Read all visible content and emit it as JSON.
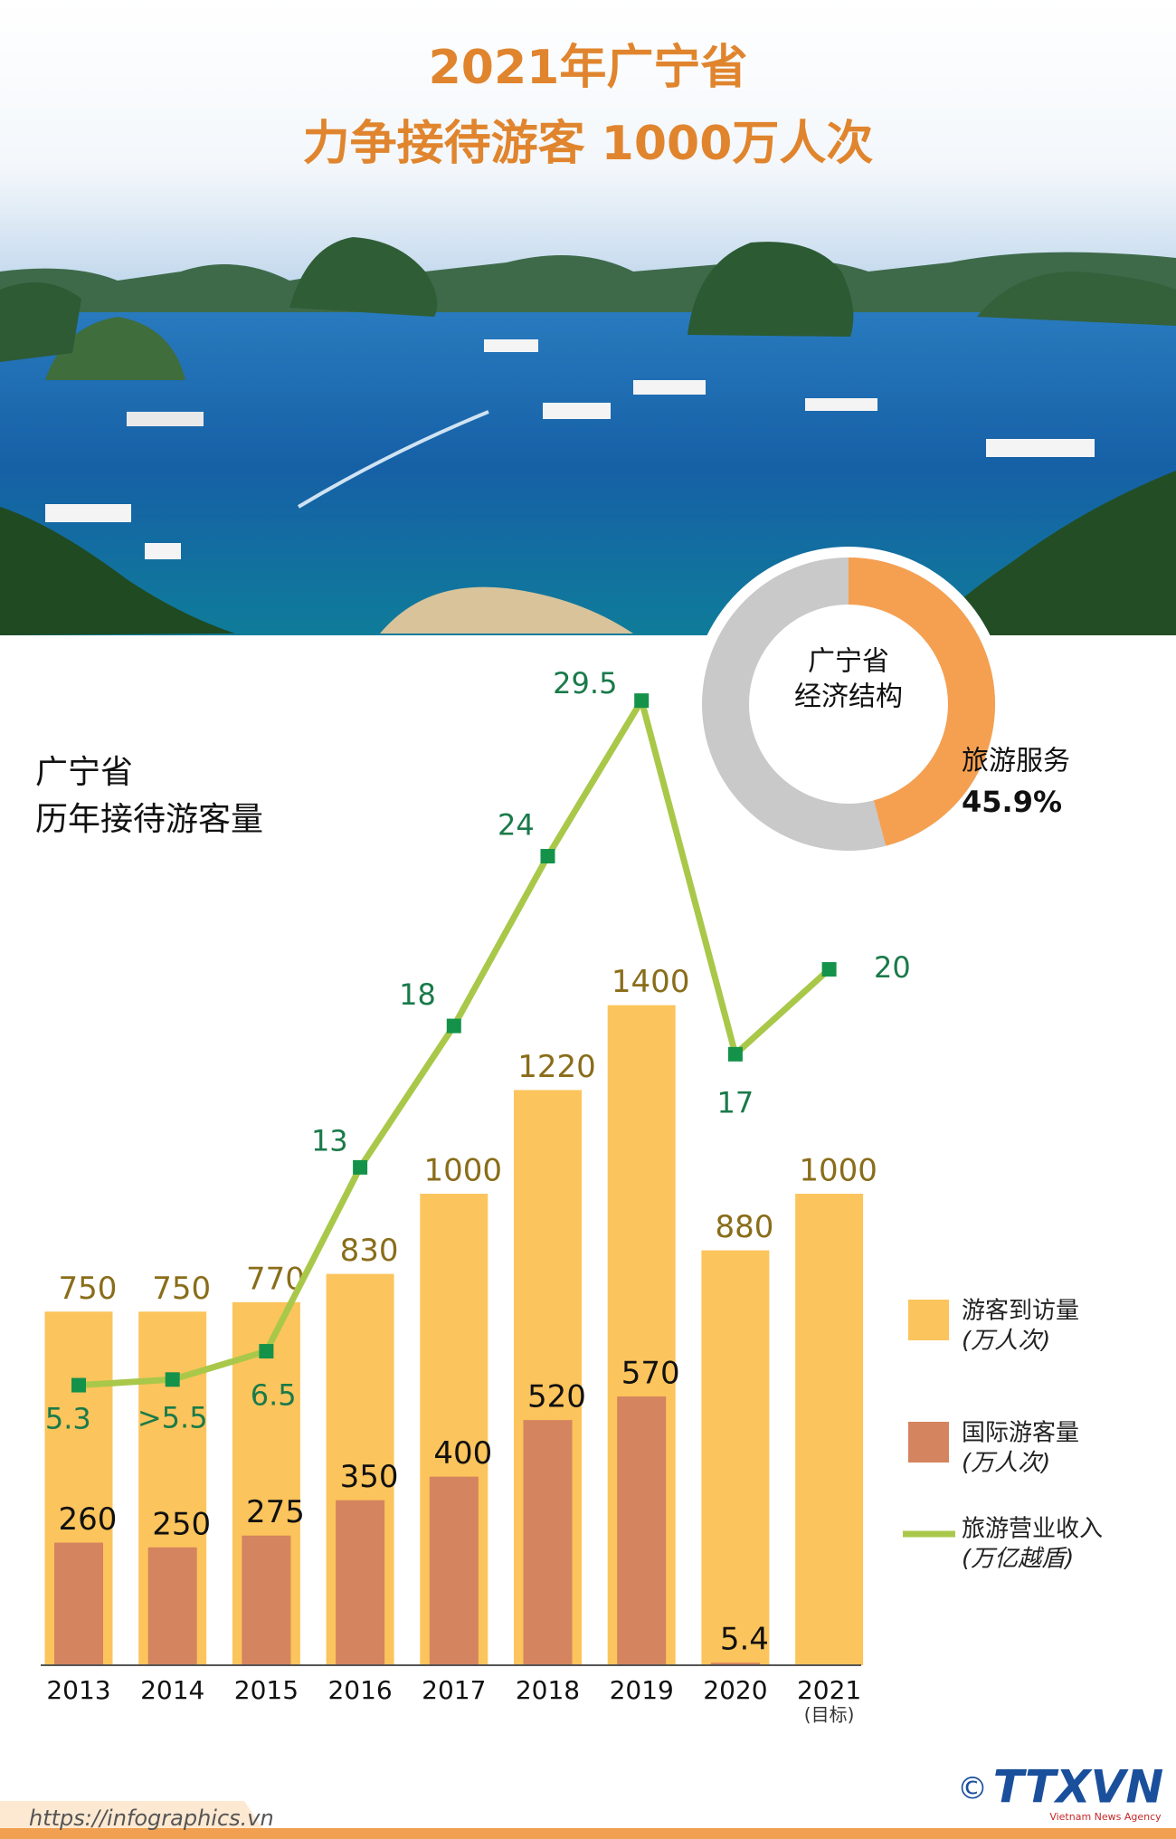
{
  "header": {
    "title": [
      "2021年广宁省",
      "力争接待游客 1000万人次"
    ]
  },
  "chart_data": [
    {
      "type": "bar",
      "title": [
        "广宁省",
        "历年接待游客量"
      ],
      "categories": [
        "2013",
        "2014",
        "2015",
        "2016",
        "2017",
        "2018",
        "2019",
        "2020",
        "2021"
      ],
      "category_note": "(目标)",
      "ylim": [
        0,
        2100
      ],
      "y2lim": [
        -4.6,
        30.4
      ],
      "series": [
        {
          "type": "bar",
          "name": "游客到访量",
          "unit": "(万人次)",
          "color": "#fcc45c",
          "values": [
            750,
            750,
            770,
            830,
            1000,
            1220,
            1400,
            880,
            1000
          ]
        },
        {
          "type": "bar",
          "name": "国际游客量",
          "unit": "(万人次)",
          "color": "#d4845e",
          "values": [
            260,
            250,
            275,
            350,
            400,
            520,
            570,
            5.4,
            null
          ]
        },
        {
          "type": "line",
          "axis": "y2",
          "name": "旅游营业收入",
          "unit": "(万亿越盾)",
          "color": "#a9c84a",
          "marker_color": "#14924a",
          "values": [
            5.3,
            5.5,
            6.5,
            13,
            18,
            24,
            29.5,
            17,
            20
          ],
          "value_labels": [
            "5.3",
            ">5.5",
            "6.5",
            "13",
            "18",
            "24",
            "29.5",
            "17",
            "20"
          ]
        }
      ]
    },
    {
      "type": "pie",
      "title": [
        "广宁省",
        "经济结构"
      ],
      "categories": [
        "旅游服务"
      ],
      "values": [
        45.9
      ],
      "value_labels": [
        "45.9%"
      ],
      "color": "#f5a050",
      "rest_color": "#c9c9c9"
    }
  ],
  "footer": {
    "url": "https://infographics.vn",
    "copyright": "©",
    "logo": "TTXVN",
    "agency": "Vietnam News Agency"
  }
}
